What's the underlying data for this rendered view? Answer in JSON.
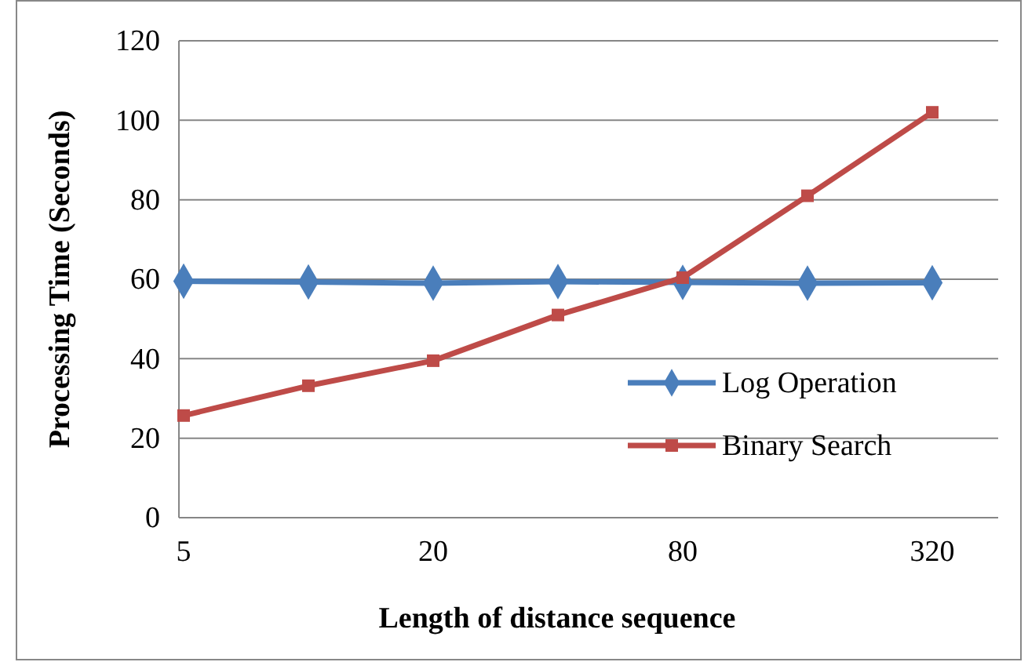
{
  "chart_data": {
    "type": "line",
    "xlabel": "Length of distance sequence",
    "ylabel": "Processing Time (Seconds)",
    "categories": [
      "5",
      null,
      "20",
      null,
      "80",
      null,
      "320"
    ],
    "series": [
      {
        "name": "Log Operation",
        "color": "#4a7ebb",
        "marker": "diamond",
        "values": [
          59.5,
          59.3,
          59,
          59.4,
          59.2,
          59,
          59.1
        ]
      },
      {
        "name": "Binary Search",
        "color": "#be4b48",
        "marker": "square",
        "values": [
          25.7,
          33.2,
          39.5,
          51,
          60.4,
          81,
          102
        ]
      }
    ],
    "ylim": [
      0,
      120
    ],
    "yticks": [
      0,
      20,
      40,
      60,
      80,
      100,
      120
    ],
    "grid": "y",
    "legend": "right",
    "line_style": "solid"
  }
}
